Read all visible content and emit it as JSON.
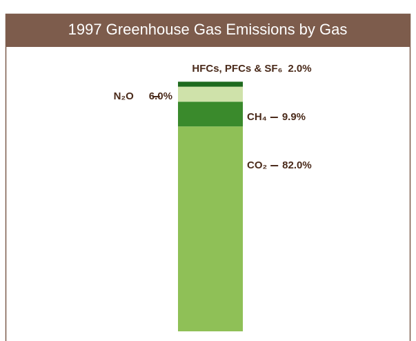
{
  "chart_data": {
    "type": "stacked-bar",
    "title": "1997 Greenhouse Gas Emissions by Gas",
    "ylim": [
      0,
      100
    ],
    "series": [
      {
        "name": "CO₂",
        "color": "#8fc057",
        "values": [
          82.0
        ],
        "value_labels": [
          "82.0%"
        ]
      },
      {
        "name": "CH₄",
        "color": "#3a8a2c",
        "values": [
          9.9
        ],
        "value_labels": [
          "9.9%"
        ]
      },
      {
        "name": "N₂O",
        "color": "#cfe2aa",
        "values": [
          6.0
        ],
        "value_labels": [
          "6.0%"
        ]
      },
      {
        "name": "HFCs, PFCs & SF₆",
        "color": "#1e6a1e",
        "values": [
          2.0
        ],
        "value_labels": [
          "2.0%"
        ]
      }
    ]
  }
}
